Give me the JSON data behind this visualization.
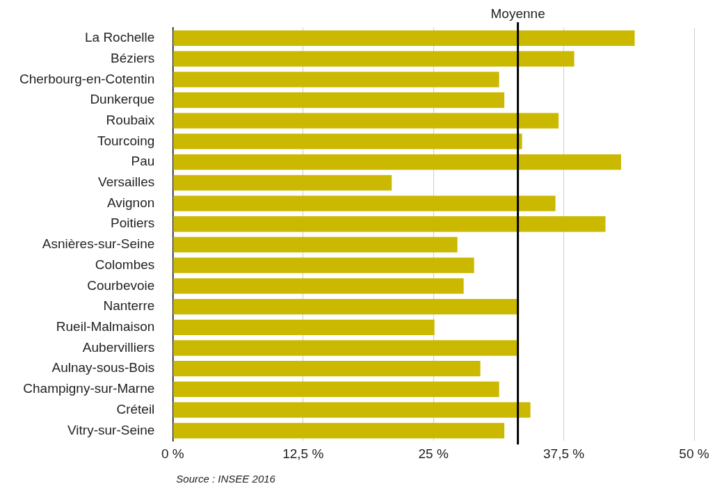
{
  "chart_data": {
    "type": "bar",
    "orientation": "horizontal",
    "categories": [
      "La Rochelle",
      "Béziers",
      "Cherbourg-en-Cotentin",
      "Dunkerque",
      "Roubaix",
      "Tourcoing",
      "Pau",
      "Versailles",
      "Avignon",
      "Poitiers",
      "Asnières-sur-Seine",
      "Colombes",
      "Courbevoie",
      "Nanterre",
      "Rueil-Malmaison",
      "Aubervilliers",
      "Aulnay-sous-Bois",
      "Champigny-sur-Marne",
      "Créteil",
      "Vitry-sur-Seine"
    ],
    "values": [
      44.3,
      38.5,
      31.3,
      31.8,
      37.0,
      33.5,
      43.0,
      21.0,
      36.7,
      41.5,
      27.3,
      28.9,
      27.9,
      33.2,
      25.1,
      33.0,
      29.5,
      31.3,
      34.3,
      31.8
    ],
    "color": "#cbb800",
    "xlim": [
      0,
      50
    ],
    "xticks": [
      {
        "value": 0,
        "label": "0 %"
      },
      {
        "value": 12.5,
        "label": "12,5 %"
      },
      {
        "value": 25,
        "label": "25 %"
      },
      {
        "value": 37.5,
        "label": "37,5 %"
      },
      {
        "value": 50,
        "label": "50 %"
      }
    ],
    "grid": "x",
    "ref_lines": [
      {
        "axis": "x",
        "value": 33.1,
        "label": "Moyenne",
        "color": "#000000"
      }
    ],
    "annotations": [
      "Source : INSEE 2016"
    ]
  }
}
